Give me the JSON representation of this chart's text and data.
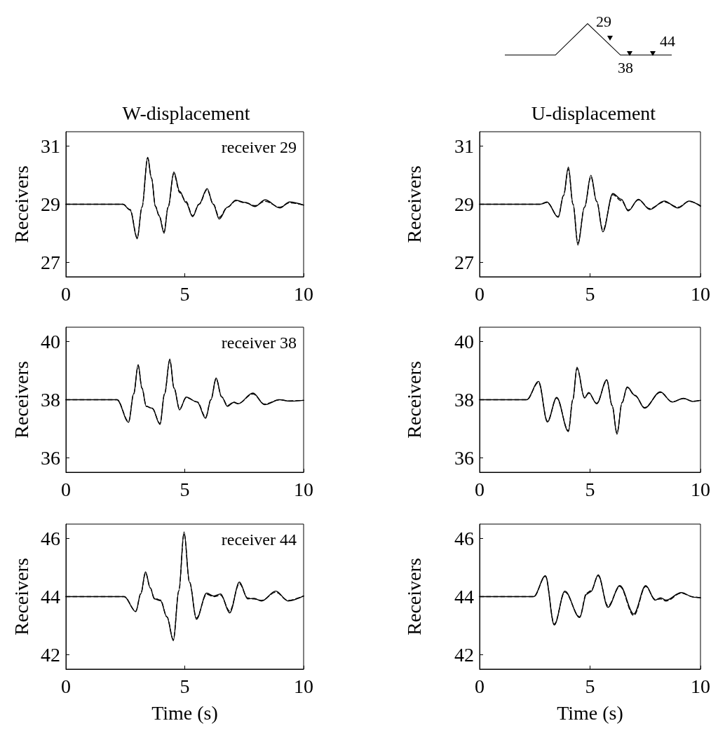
{
  "chart_data": [
    {
      "type": "other",
      "annotations": [
        "29",
        "38",
        "44"
      ]
    },
    {
      "type": "line",
      "title": "W-displacement",
      "ylabel": "Receivers",
      "annotations": [
        "receiver 29"
      ],
      "xlim": [
        0,
        10
      ],
      "xticks": [
        0,
        5,
        10
      ],
      "ylim": [
        26.5,
        31.5
      ],
      "yticks": [
        27,
        29,
        31
      ],
      "series": [
        {
          "color": "#000000",
          "line_style": "solid",
          "x": [
            0,
            2.4,
            2.7,
            3.0,
            3.2,
            3.44,
            3.6,
            3.77,
            3.92,
            4.13,
            4.3,
            4.54,
            4.79,
            5.05,
            5.33,
            5.6,
            5.94,
            6.2,
            6.45,
            6.8,
            7.15,
            7.56,
            7.95,
            8.38,
            9.0,
            9.41,
            10
          ],
          "values": [
            29,
            29,
            28.8,
            27.81,
            28.9,
            30.62,
            29.9,
            28.91,
            28.6,
            28.0,
            28.9,
            30.11,
            29.44,
            29.06,
            28.57,
            29.0,
            29.54,
            29.0,
            28.49,
            28.9,
            29.14,
            29.06,
            28.92,
            29.15,
            28.87,
            29.08,
            28.97
          ]
        },
        {
          "color": "#000000",
          "line_style": "dashed",
          "x": [
            0,
            2.4,
            2.7,
            3.0,
            3.2,
            3.44,
            3.6,
            3.77,
            3.92,
            4.13,
            4.3,
            4.54,
            4.79,
            5.05,
            5.33,
            5.6,
            5.94,
            6.2,
            6.45,
            6.8,
            7.15,
            7.56,
            7.95,
            8.38,
            9.0,
            9.41,
            10
          ],
          "values": [
            29,
            29,
            28.82,
            27.85,
            28.9,
            30.6,
            29.9,
            28.93,
            28.62,
            28.05,
            28.9,
            30.05,
            29.4,
            29.1,
            28.6,
            29.0,
            29.5,
            29.0,
            28.55,
            28.9,
            29.12,
            29.05,
            28.95,
            29.1,
            28.9,
            29.05,
            28.97
          ]
        }
      ]
    },
    {
      "type": "line",
      "title": "U-displacement",
      "ylabel": "Receivers",
      "xlim": [
        0,
        10
      ],
      "xticks": [
        0,
        5,
        10
      ],
      "ylim": [
        26.5,
        31.5
      ],
      "yticks": [
        27,
        29,
        31
      ],
      "series": [
        {
          "color": "#000000",
          "line_style": "solid",
          "x": [
            0,
            2.74,
            3.05,
            3.56,
            3.8,
            4.02,
            4.23,
            4.45,
            4.75,
            5.04,
            5.3,
            5.58,
            6.03,
            6.42,
            6.73,
            7.19,
            7.7,
            8.36,
            8.98,
            9.49,
            10
          ],
          "values": [
            29,
            29,
            29.08,
            28.55,
            29.3,
            30.28,
            29.0,
            27.59,
            28.9,
            30.0,
            29.1,
            28.05,
            29.37,
            29.17,
            28.77,
            29.17,
            28.82,
            29.11,
            28.87,
            29.11,
            28.93
          ]
        },
        {
          "color": "#000000",
          "line_style": "dashed",
          "x": [
            0,
            2.74,
            3.05,
            3.56,
            3.8,
            4.02,
            4.23,
            4.45,
            4.75,
            5.04,
            5.3,
            5.58,
            6.03,
            6.42,
            6.73,
            7.19,
            7.7,
            8.36,
            8.98,
            9.49,
            10
          ],
          "values": [
            29,
            29,
            29.06,
            28.57,
            29.3,
            30.22,
            29.0,
            27.66,
            28.9,
            29.95,
            29.1,
            28.1,
            29.33,
            29.12,
            28.8,
            29.15,
            28.85,
            29.08,
            28.9,
            29.1,
            28.95
          ]
        }
      ]
    },
    {
      "type": "line",
      "ylabel": "Receivers",
      "annotations": [
        "receiver 38"
      ],
      "xlim": [
        0,
        10
      ],
      "xticks": [
        0,
        5,
        10
      ],
      "ylim": [
        35.5,
        40.5
      ],
      "yticks": [
        36,
        38,
        40
      ],
      "series": [
        {
          "color": "#000000",
          "line_style": "solid",
          "x": [
            0,
            2.15,
            2.64,
            2.85,
            3.04,
            3.2,
            3.38,
            3.63,
            3.96,
            4.15,
            4.37,
            4.55,
            4.78,
            5.06,
            5.52,
            5.88,
            6.1,
            6.32,
            6.55,
            6.8,
            7.06,
            7.24,
            7.87,
            8.36,
            8.99,
            9.4,
            10
          ],
          "values": [
            38,
            38,
            37.22,
            38.2,
            39.21,
            38.4,
            37.77,
            37.71,
            37.15,
            38.2,
            39.4,
            38.4,
            37.65,
            38.09,
            37.92,
            37.36,
            38.0,
            38.75,
            38.1,
            37.77,
            37.91,
            37.86,
            38.23,
            37.83,
            38.0,
            37.95,
            37.98
          ]
        },
        {
          "color": "#000000",
          "line_style": "dashed",
          "x": [
            0,
            2.15,
            2.64,
            2.85,
            3.04,
            3.2,
            3.38,
            3.63,
            3.96,
            4.15,
            4.37,
            4.55,
            4.78,
            5.06,
            5.52,
            5.88,
            6.1,
            6.32,
            6.55,
            6.8,
            7.06,
            7.24,
            7.87,
            8.36,
            8.99,
            9.4,
            10
          ],
          "values": [
            38,
            38,
            37.25,
            38.2,
            39.18,
            38.4,
            37.78,
            37.7,
            37.18,
            38.2,
            39.36,
            38.4,
            37.68,
            38.07,
            37.93,
            37.4,
            38.0,
            38.72,
            38.1,
            37.8,
            37.92,
            37.87,
            38.2,
            37.85,
            38.0,
            37.96,
            37.98
          ]
        }
      ]
    },
    {
      "type": "line",
      "ylabel": "Receivers",
      "xlim": [
        0,
        10
      ],
      "xticks": [
        0,
        5,
        10
      ],
      "ylim": [
        35.5,
        40.5
      ],
      "yticks": [
        36,
        38,
        40
      ],
      "series": [
        {
          "color": "#000000",
          "line_style": "solid",
          "x": [
            0,
            2.13,
            2.67,
            3.07,
            3.49,
            4.02,
            4.22,
            4.41,
            4.75,
            4.94,
            5.3,
            5.76,
            6.0,
            6.22,
            6.45,
            6.68,
            7.04,
            7.47,
            8.18,
            8.72,
            9.23,
            9.64,
            10
          ],
          "values": [
            38,
            38,
            38.63,
            37.23,
            38.08,
            36.9,
            38.0,
            39.12,
            38.06,
            38.25,
            37.86,
            38.69,
            37.8,
            36.81,
            37.9,
            38.44,
            38.15,
            37.71,
            38.27,
            37.92,
            38.05,
            37.94,
            37.98
          ]
        },
        {
          "color": "#000000",
          "line_style": "dashed",
          "x": [
            0,
            2.13,
            2.67,
            3.07,
            3.49,
            4.02,
            4.22,
            4.41,
            4.75,
            4.94,
            5.3,
            5.76,
            6.0,
            6.22,
            6.45,
            6.68,
            7.04,
            7.47,
            8.18,
            8.72,
            9.23,
            9.64,
            10
          ],
          "values": [
            38,
            38,
            38.6,
            37.26,
            38.06,
            36.93,
            38.0,
            39.08,
            38.08,
            38.22,
            37.88,
            38.66,
            37.8,
            36.85,
            37.9,
            38.42,
            38.14,
            37.73,
            38.25,
            37.93,
            38.04,
            37.95,
            37.98
          ]
        }
      ]
    },
    {
      "type": "line",
      "xlabel": "Time (s)",
      "ylabel": "Receivers",
      "annotations": [
        "receiver 44"
      ],
      "xlim": [
        0,
        10
      ],
      "xticks": [
        0,
        5,
        10
      ],
      "ylim": [
        41.5,
        46.5
      ],
      "yticks": [
        42,
        44,
        46
      ],
      "series": [
        {
          "color": "#000000",
          "line_style": "solid",
          "x": [
            0,
            2.45,
            2.94,
            3.15,
            3.35,
            3.55,
            3.72,
            3.98,
            4.25,
            4.52,
            4.75,
            4.97,
            5.2,
            5.49,
            5.92,
            6.22,
            6.51,
            6.89,
            7.3,
            7.65,
            7.91,
            8.23,
            8.83,
            9.34,
            10
          ],
          "values": [
            44,
            44,
            43.48,
            44.1,
            44.85,
            44.3,
            43.92,
            43.86,
            43.3,
            42.48,
            44.2,
            46.23,
            44.5,
            43.22,
            44.12,
            44.02,
            44.09,
            43.44,
            44.5,
            43.92,
            43.94,
            43.85,
            44.19,
            43.85,
            44.02
          ]
        },
        {
          "color": "#000000",
          "line_style": "dashed",
          "x": [
            0,
            2.45,
            2.94,
            3.15,
            3.35,
            3.55,
            3.72,
            3.98,
            4.25,
            4.52,
            4.75,
            4.97,
            5.2,
            5.49,
            5.92,
            6.22,
            6.51,
            6.89,
            7.3,
            7.65,
            7.91,
            8.23,
            8.83,
            9.34,
            10
          ],
          "values": [
            44,
            44,
            43.5,
            44.1,
            44.82,
            44.3,
            43.95,
            43.88,
            43.3,
            42.52,
            44.2,
            46.18,
            44.5,
            43.26,
            44.08,
            44.0,
            44.05,
            43.5,
            44.45,
            43.95,
            43.92,
            43.87,
            44.15,
            43.87,
            44.02
          ]
        }
      ]
    },
    {
      "type": "line",
      "xlabel": "Time (s)",
      "ylabel": "Receivers",
      "xlim": [
        0,
        10
      ],
      "xticks": [
        0,
        5,
        10
      ],
      "ylim": [
        41.5,
        46.5
      ],
      "yticks": [
        42,
        44,
        46
      ],
      "series": [
        {
          "color": "#000000",
          "line_style": "solid",
          "x": [
            0,
            2.45,
            2.98,
            3.38,
            3.86,
            4.53,
            4.84,
            5.04,
            5.37,
            5.81,
            6.35,
            6.98,
            7.52,
            7.95,
            8.19,
            8.44,
            9.13,
            9.69,
            10
          ],
          "values": [
            44,
            44,
            44.72,
            43.02,
            44.19,
            43.28,
            44.08,
            44.17,
            44.75,
            43.63,
            44.38,
            43.4,
            44.38,
            43.88,
            43.96,
            43.88,
            44.14,
            43.98,
            43.96
          ]
        },
        {
          "color": "#000000",
          "line_style": "dashed",
          "x": [
            0,
            2.45,
            2.98,
            3.38,
            3.86,
            4.53,
            4.84,
            5.04,
            5.37,
            5.81,
            6.35,
            6.98,
            7.52,
            7.95,
            8.19,
            8.44,
            9.13,
            9.69,
            10
          ],
          "values": [
            44,
            44,
            44.7,
            43.05,
            44.16,
            43.3,
            44.12,
            44.2,
            44.72,
            43.68,
            44.35,
            43.35,
            44.35,
            43.9,
            43.92,
            43.85,
            44.12,
            43.99,
            43.96
          ]
        }
      ]
    }
  ]
}
